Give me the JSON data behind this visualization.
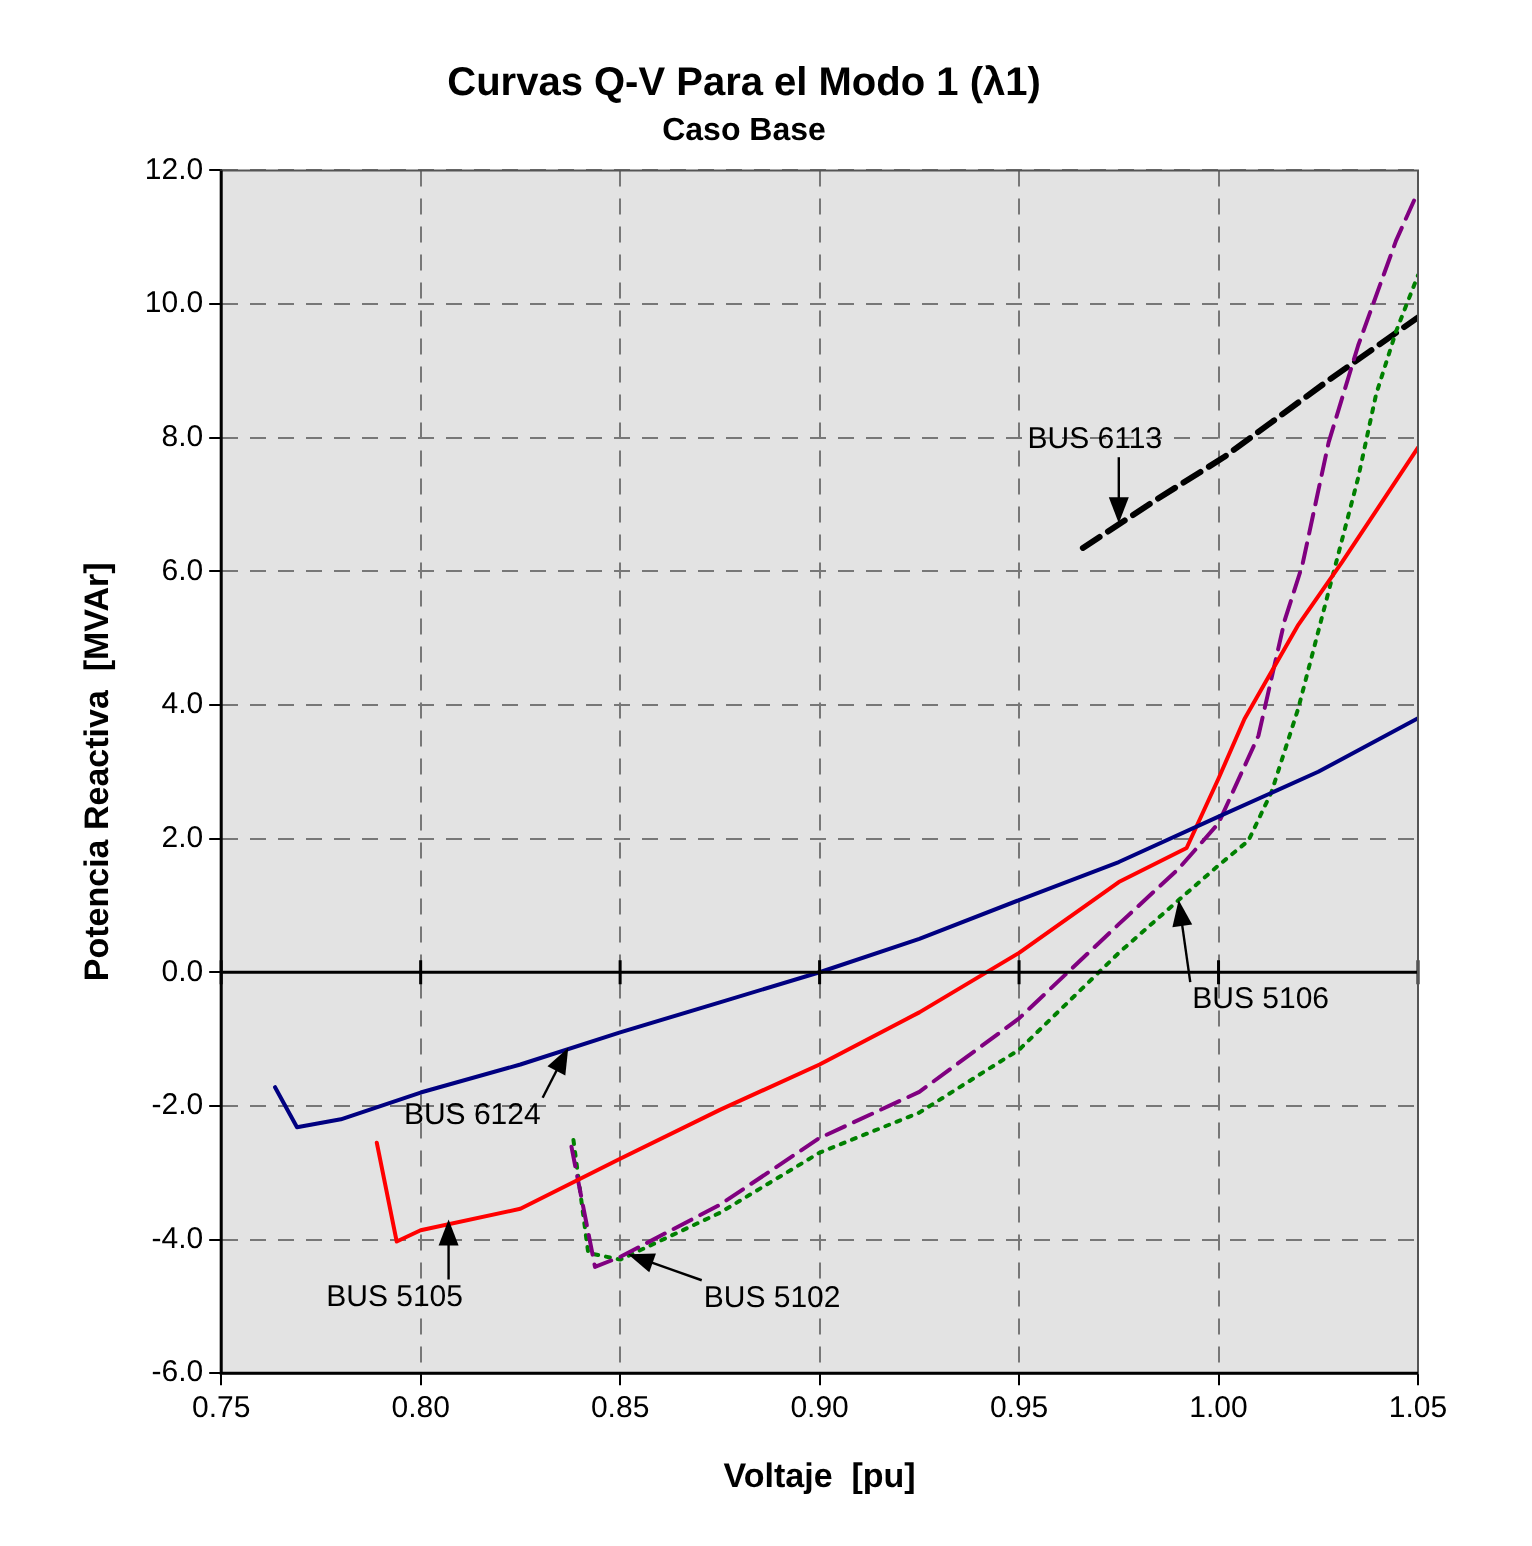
{
  "chart_data": {
    "type": "line",
    "title": "Curvas Q-V Para el Modo 1 (λ1)",
    "subtitle": "Caso Base",
    "xlabel": "Voltaje  [pu]",
    "ylabel": "Potencia Reactiva  [MVAr]",
    "xlim": [
      0.75,
      1.05
    ],
    "xticks": [
      0.75,
      {
        "value": 0.8,
        "label": "0.80"
      },
      0.85,
      {
        "value": 0.9,
        "label": "0.90"
      },
      0.95,
      {
        "value": 1,
        "label": "1.00"
      },
      1.05
    ],
    "ylim": [
      -6,
      12
    ],
    "yticks": [
      {
        "value": -6,
        "label": "-6.0"
      },
      {
        "value": -4,
        "label": "-4.0"
      },
      {
        "value": -2,
        "label": "-2.0"
      },
      {
        "value": 0,
        "label": "0.0"
      },
      {
        "value": 2,
        "label": "2.0"
      },
      {
        "value": 4,
        "label": "4.0"
      },
      {
        "value": 6,
        "label": "6.0"
      },
      {
        "value": 8,
        "label": "8.0"
      },
      {
        "value": 10,
        "label": "10.0"
      },
      {
        "value": 12,
        "label": "12.0"
      }
    ],
    "grid": true,
    "legend": false,
    "marker": "none",
    "ref_lines": [
      {
        "axis": "y",
        "value": 0,
        "color": "#000000",
        "line_style": "solid"
      }
    ],
    "series": [
      {
        "color": "#000080",
        "line_style": "solid",
        "x": [
          0.7635,
          0.769,
          0.78,
          0.8,
          0.825,
          0.85,
          0.875,
          0.9,
          0.925,
          0.95,
          0.975,
          1.0,
          1.025,
          1.05
        ],
        "values": [
          -1.72,
          -2.32,
          -2.2,
          -1.8,
          -1.38,
          -0.9,
          -0.45,
          0,
          0.5,
          1.08,
          1.65,
          2.33,
          3.0,
          3.8
        ]
      },
      {
        "color": "#ff0000",
        "line_style": "solid",
        "x": [
          0.789,
          0.794,
          0.8,
          0.825,
          0.85,
          0.875,
          0.9,
          0.925,
          0.95,
          0.975,
          0.992,
          1.0,
          1.0065,
          1.02,
          1.031,
          1.05
        ],
        "values": [
          -2.55,
          -4.03,
          -3.86,
          -3.54,
          -2.79,
          -2.06,
          -1.38,
          -0.6,
          0.29,
          1.35,
          1.86,
          2.9,
          3.79,
          5.2,
          6.14,
          7.85
        ]
      },
      {
        "color": "#800080",
        "line_style": "dashed",
        "x": [
          0.8378,
          0.8437,
          0.85,
          0.875,
          0.9,
          0.925,
          0.95,
          0.975,
          0.99,
          1.0,
          1.01,
          1.0166,
          1.021,
          1.0276,
          1.035,
          1.0445,
          1.05
        ],
        "values": [
          -2.61,
          -4.41,
          -4.26,
          -3.48,
          -2.48,
          -1.79,
          -0.69,
          0.72,
          1.55,
          2.23,
          3.54,
          5.27,
          6.09,
          7.93,
          9.38,
          10.95,
          11.68
        ]
      },
      {
        "color": "#008000",
        "line_style": "dotted",
        "x": [
          0.8383,
          0.842,
          0.85,
          0.875,
          0.9,
          0.925,
          0.95,
          0.975,
          0.99,
          1.0,
          1.0075,
          1.0133,
          1.02,
          1.0276,
          1.035,
          1.0395,
          1.0445,
          1.05
        ],
        "values": [
          -2.51,
          -4.2,
          -4.3,
          -3.6,
          -2.7,
          -2.1,
          -1.16,
          0.29,
          1.08,
          1.6,
          1.97,
          2.7,
          3.95,
          5.7,
          7.4,
          8.65,
          9.59,
          10.43
        ]
      },
      {
        "color": "#000000",
        "line_style": "dashed",
        "x": [
          0.966,
          0.9846,
          1.0014,
          1.0276,
          1.05
        ],
        "values": [
          6.35,
          7.08,
          7.71,
          8.86,
          9.8
        ]
      }
    ],
    "annotations": [
      {
        "text": "BUS 6124",
        "x": 0.837,
        "y": -1.13
      },
      {
        "text": "BUS 5105",
        "x": 0.807,
        "y": -3.7
      },
      {
        "text": "BUS 5102",
        "x": 0.852,
        "y": -4.22
      },
      {
        "text": "BUS 5106",
        "x": 0.99,
        "y": 1.08
      },
      {
        "text": "BUS 6113",
        "x": 0.975,
        "y": 6.72
      }
    ]
  }
}
